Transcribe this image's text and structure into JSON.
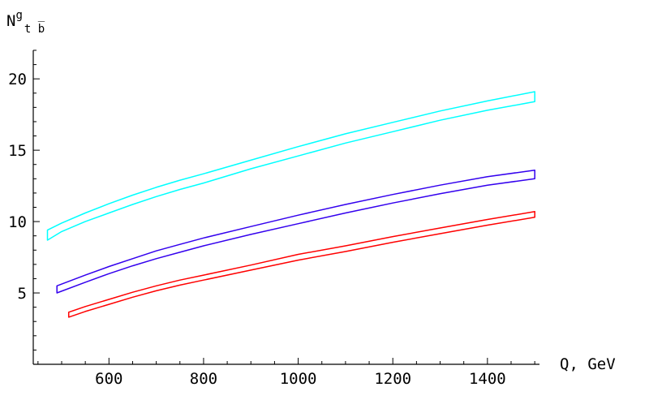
{
  "chart_data": {
    "type": "line",
    "title": "",
    "xlabel": "Q, GeV",
    "ylabel": {
      "main": "N",
      "superscript": "g",
      "subscript": "t b̅"
    },
    "xlim": [
      440,
      1510
    ],
    "ylim": [
      0,
      22
    ],
    "x_ticks": [
      600,
      800,
      1000,
      1200,
      1400
    ],
    "y_ticks": [
      5,
      10,
      15,
      20
    ],
    "x_minor_step": 50,
    "y_minor_step": 1,
    "grid": false,
    "legend": "none",
    "series": [
      {
        "color": "#00ffff",
        "x": [
          470,
          500,
          550,
          600,
          650,
          700,
          750,
          800,
          900,
          1000,
          1100,
          1200,
          1300,
          1400,
          1500
        ],
        "y_low": [
          8.7,
          9.3,
          10.0,
          10.6,
          11.2,
          11.75,
          12.25,
          12.7,
          13.7,
          14.6,
          15.5,
          16.3,
          17.1,
          17.8,
          18.4
        ],
        "y_high": [
          9.4,
          9.9,
          10.6,
          11.25,
          11.85,
          12.4,
          12.9,
          13.35,
          14.3,
          15.25,
          16.15,
          16.95,
          17.75,
          18.45,
          19.1
        ]
      },
      {
        "color": "#3300ee",
        "x": [
          490,
          550,
          600,
          650,
          700,
          750,
          800,
          900,
          1000,
          1100,
          1200,
          1300,
          1400,
          1500
        ],
        "y_low": [
          5.0,
          5.75,
          6.35,
          6.9,
          7.4,
          7.85,
          8.3,
          9.1,
          9.85,
          10.6,
          11.3,
          11.95,
          12.55,
          13.0
        ],
        "y_high": [
          5.5,
          6.25,
          6.85,
          7.4,
          7.95,
          8.4,
          8.85,
          9.65,
          10.45,
          11.2,
          11.9,
          12.55,
          13.15,
          13.6
        ]
      },
      {
        "color": "#ff0000",
        "x": [
          515,
          550,
          600,
          650,
          700,
          750,
          800,
          900,
          1000,
          1100,
          1200,
          1300,
          1400,
          1500
        ],
        "y_low": [
          3.3,
          3.7,
          4.2,
          4.7,
          5.15,
          5.55,
          5.9,
          6.6,
          7.3,
          7.9,
          8.55,
          9.15,
          9.75,
          10.3
        ],
        "y_high": [
          3.65,
          4.05,
          4.55,
          5.05,
          5.5,
          5.9,
          6.25,
          6.95,
          7.7,
          8.3,
          8.95,
          9.55,
          10.15,
          10.7
        ]
      }
    ]
  }
}
